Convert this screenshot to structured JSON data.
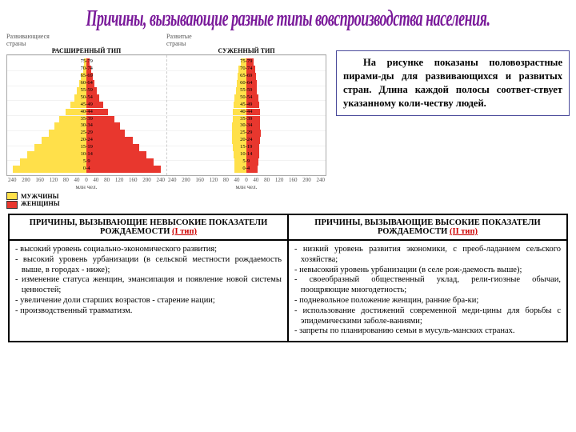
{
  "title": {
    "text": "Причины, вызывающие разные типы вовспроизводства населения.",
    "color": "#7a1a9a",
    "fontsize": 18
  },
  "charts": {
    "developing_label": "Развивающиеся\nстраны",
    "developed_label": "Развитые\nстраны",
    "type_expanded": "РАСШИРЕННЫЙ ТИП",
    "type_narrow": "СУЖЕННЫЙ ТИП",
    "x_unit": "млн чел.",
    "x_ticks": [
      "240",
      "200",
      "160",
      "120",
      "80",
      "40",
      "0",
      "40",
      "80",
      "120",
      "160",
      "200",
      "240"
    ],
    "age_groups": [
      "75-79",
      "70-74",
      "65-69",
      "60-64",
      "55-59",
      "50-54",
      "45-49",
      "40-44",
      "35-39",
      "30-34",
      "25-29",
      "20-24",
      "15-19",
      "10-14",
      "5-9",
      "0-4"
    ],
    "developing": {
      "male": [
        8,
        12,
        18,
        24,
        32,
        40,
        54,
        70,
        90,
        108,
        126,
        150,
        172,
        196,
        220,
        244
      ],
      "female": [
        10,
        14,
        20,
        26,
        34,
        42,
        56,
        72,
        92,
        110,
        128,
        152,
        174,
        198,
        222,
        246
      ],
      "max_scale": 260
    },
    "developed": {
      "male": [
        18,
        26,
        28,
        30,
        34,
        38,
        42,
        44,
        44,
        46,
        48,
        46,
        44,
        42,
        40,
        38
      ],
      "female": [
        24,
        30,
        32,
        34,
        36,
        40,
        42,
        46,
        46,
        46,
        48,
        46,
        44,
        42,
        40,
        38
      ],
      "max_scale": 260
    },
    "colors": {
      "male": "#ffe04a",
      "female": "#e8372e"
    }
  },
  "legend": {
    "male": "МУЖЧИНЫ",
    "female": "ЖЕНЩИНЫ"
  },
  "description": "На рисунке показаны половозрастные пирами-ды для развивающихся и развитых стран. Длина каждой полосы соответ-ствует указанному коли-честву людей.",
  "table": {
    "header_low_a": "ПРИЧИНЫ, ВЫЗЫВАЮЩИЕ НЕВЫСОКИЕ ПОКАЗАТЕЛИ РОЖДАЕМОСТИ",
    "header_low_b": "(I  тип)",
    "header_high_a": "ПРИЧИНЫ, ВЫЗЫВАЮЩИЕ ВЫСОКИЕ ПОКАЗАТЕЛИ РОЖДАЕМОСТИ",
    "header_high_b": "(II тип)",
    "low": [
      "высокий уровень социально-экономического развития;",
      "высокий уровень урбанизации (в сельской местности рождаемость выше, в городах - ниже);",
      "изменение статуса женщин, эмансипация и появление новой системы ценностей;",
      "увеличение доли старших возрастов - старение нации;",
      "производственный травматизм."
    ],
    "high": [
      "низкий уровень развития экономики, с преоб-ладанием сельского хозяйства;",
      "невысокий уровень урбанизации (в селе рож-даемость выше);",
      "своеобразный общественный уклад, рели-гиозные обычаи, поощряющие многодетность;",
      "подневольное положение женщин, ранние бра-ки;",
      "использование достижений современной меди-цины для борьбы с эпидемическими заболе-ваниями;",
      "запреты по планированию семьи в мусуль-манских странах."
    ]
  }
}
